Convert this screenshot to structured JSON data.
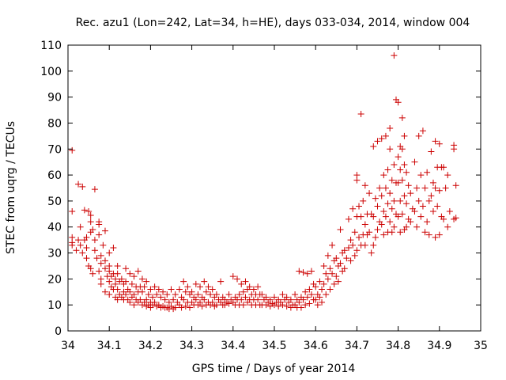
{
  "chart_data": {
    "type": "scatter",
    "title": "Rec. azu1 (Lon=242, Lat=34, h=HE), days 033-034, 2014, window 004",
    "xlabel": "GPS time / Days of year 2014",
    "ylabel": "STEC from uqrg / TECUs",
    "xlim": [
      34,
      35
    ],
    "ylim": [
      0,
      110
    ],
    "x_ticks": [
      34,
      34.1,
      34.2,
      34.3,
      34.4,
      34.5,
      34.6,
      34.7,
      34.8,
      34.9,
      35
    ],
    "x_tick_labels": [
      "34",
      "34.1",
      "34.2",
      "34.3",
      "34.4",
      "34.5",
      "34.6",
      "34.7",
      "34.8",
      "34.9",
      "35"
    ],
    "y_ticks": [
      0,
      10,
      20,
      30,
      40,
      50,
      60,
      70,
      80,
      90,
      100,
      110
    ],
    "y_tick_labels": [
      "0",
      "10",
      "20",
      "30",
      "40",
      "50",
      "60",
      "70",
      "80",
      "90",
      "100",
      "110"
    ],
    "marker": "plus",
    "color": "#cc0000",
    "grid": false,
    "points": [
      [
        34.01,
        69.5
      ],
      [
        34.01,
        46
      ],
      [
        34.01,
        36
      ],
      [
        34.01,
        34
      ],
      [
        34.01,
        33
      ],
      [
        34.025,
        56.5
      ],
      [
        34.03,
        40
      ],
      [
        34.035,
        55.5
      ],
      [
        34.025,
        35
      ],
      [
        34.03,
        33
      ],
      [
        34.035,
        30
      ],
      [
        34.02,
        31
      ],
      [
        34.04,
        46.5
      ],
      [
        34.045,
        36
      ],
      [
        34.045,
        32
      ],
      [
        34.045,
        28
      ],
      [
        34.04,
        35
      ],
      [
        34.05,
        46
      ],
      [
        34.055,
        44.5
      ],
      [
        34.055,
        42
      ],
      [
        34.055,
        38
      ],
      [
        34.05,
        25
      ],
      [
        34.055,
        24
      ],
      [
        34.065,
        54.5
      ],
      [
        34.06,
        39
      ],
      [
        34.065,
        35
      ],
      [
        34.065,
        31
      ],
      [
        34.07,
        28
      ],
      [
        34.06,
        22
      ],
      [
        34.075,
        42
      ],
      [
        34.075,
        41
      ],
      [
        34.075,
        37
      ],
      [
        34.08,
        29
      ],
      [
        34.08,
        26
      ],
      [
        34.075,
        23
      ],
      [
        34.08,
        20
      ],
      [
        34.08,
        18
      ],
      [
        34.085,
        33
      ],
      [
        34.09,
        38.5
      ],
      [
        34.09,
        27
      ],
      [
        34.09,
        24
      ],
      [
        34.095,
        21
      ],
      [
        34.09,
        15
      ],
      [
        34.1,
        30
      ],
      [
        34.1,
        25
      ],
      [
        34.1,
        23
      ],
      [
        34.105,
        21
      ],
      [
        34.1,
        19
      ],
      [
        34.105,
        17
      ],
      [
        34.1,
        14
      ],
      [
        34.11,
        32
      ],
      [
        34.11,
        22
      ],
      [
        34.115,
        20
      ],
      [
        34.115,
        18
      ],
      [
        34.11,
        16
      ],
      [
        34.115,
        13
      ],
      [
        34.12,
        25
      ],
      [
        34.12,
        22
      ],
      [
        34.125,
        19
      ],
      [
        34.12,
        16
      ],
      [
        34.125,
        14
      ],
      [
        34.12,
        12
      ],
      [
        34.13,
        20
      ],
      [
        34.135,
        18
      ],
      [
        34.135,
        15
      ],
      [
        34.13,
        13
      ],
      [
        34.135,
        12
      ],
      [
        34.14,
        24
      ],
      [
        34.14,
        19
      ],
      [
        34.145,
        16
      ],
      [
        34.14,
        14
      ],
      [
        34.145,
        12
      ],
      [
        34.15,
        22
      ],
      [
        34.155,
        18
      ],
      [
        34.15,
        15
      ],
      [
        34.155,
        13
      ],
      [
        34.15,
        11
      ],
      [
        34.16,
        21
      ],
      [
        34.165,
        17
      ],
      [
        34.16,
        14
      ],
      [
        34.165,
        12
      ],
      [
        34.16,
        10
      ],
      [
        34.17,
        23
      ],
      [
        34.175,
        17
      ],
      [
        34.17,
        15
      ],
      [
        34.175,
        12
      ],
      [
        34.17,
        11
      ],
      [
        34.18,
        20
      ],
      [
        34.185,
        17
      ],
      [
        34.18,
        15
      ],
      [
        34.185,
        11
      ],
      [
        34.18,
        10
      ],
      [
        34.19,
        19
      ],
      [
        34.195,
        14
      ],
      [
        34.19,
        12
      ],
      [
        34.195,
        10
      ],
      [
        34.19,
        9.5
      ],
      [
        34.2,
        16
      ],
      [
        34.205,
        13
      ],
      [
        34.2,
        11
      ],
      [
        34.205,
        10
      ],
      [
        34.2,
        9
      ],
      [
        34.21,
        17
      ],
      [
        34.215,
        14
      ],
      [
        34.21,
        11
      ],
      [
        34.215,
        9.5
      ],
      [
        34.22,
        16
      ],
      [
        34.225,
        13
      ],
      [
        34.22,
        10
      ],
      [
        34.225,
        9
      ],
      [
        34.23,
        15
      ],
      [
        34.235,
        12
      ],
      [
        34.23,
        9.5
      ],
      [
        34.235,
        9
      ],
      [
        34.24,
        14
      ],
      [
        34.245,
        11
      ],
      [
        34.24,
        9
      ],
      [
        34.245,
        8.5
      ],
      [
        34.25,
        16
      ],
      [
        34.255,
        12
      ],
      [
        34.25,
        9.5
      ],
      [
        34.255,
        8.5
      ],
      [
        34.26,
        14
      ],
      [
        34.265,
        11
      ],
      [
        34.26,
        9
      ],
      [
        34.27,
        16
      ],
      [
        34.275,
        13
      ],
      [
        34.27,
        10
      ],
      [
        34.275,
        9
      ],
      [
        34.28,
        19
      ],
      [
        34.285,
        15
      ],
      [
        34.28,
        12
      ],
      [
        34.285,
        9.5
      ],
      [
        34.29,
        17
      ],
      [
        34.295,
        14
      ],
      [
        34.29,
        11
      ],
      [
        34.295,
        9
      ],
      [
        34.3,
        15
      ],
      [
        34.305,
        13
      ],
      [
        34.3,
        11
      ],
      [
        34.305,
        10
      ],
      [
        34.31,
        18
      ],
      [
        34.315,
        14
      ],
      [
        34.31,
        12
      ],
      [
        34.315,
        10
      ],
      [
        34.32,
        17
      ],
      [
        34.325,
        13
      ],
      [
        34.32,
        11
      ],
      [
        34.325,
        9.5
      ],
      [
        34.33,
        19
      ],
      [
        34.335,
        15
      ],
      [
        34.33,
        12
      ],
      [
        34.335,
        10
      ],
      [
        34.34,
        17
      ],
      [
        34.345,
        14
      ],
      [
        34.34,
        11
      ],
      [
        34.345,
        10
      ],
      [
        34.35,
        16
      ],
      [
        34.355,
        13
      ],
      [
        34.35,
        11
      ],
      [
        34.355,
        9.5
      ],
      [
        34.36,
        14
      ],
      [
        34.365,
        12
      ],
      [
        34.36,
        10
      ],
      [
        34.37,
        19
      ],
      [
        34.375,
        13
      ],
      [
        34.37,
        11
      ],
      [
        34.375,
        10
      ],
      [
        34.38,
        12
      ],
      [
        34.385,
        11
      ],
      [
        34.38,
        10
      ],
      [
        34.39,
        14
      ],
      [
        34.395,
        12
      ],
      [
        34.39,
        10.5
      ],
      [
        34.4,
        21
      ],
      [
        34.405,
        13
      ],
      [
        34.4,
        11
      ],
      [
        34.405,
        10
      ],
      [
        34.41,
        20
      ],
      [
        34.415,
        14
      ],
      [
        34.41,
        12
      ],
      [
        34.415,
        10
      ],
      [
        34.42,
        18
      ],
      [
        34.425,
        15
      ],
      [
        34.42,
        12
      ],
      [
        34.425,
        10
      ],
      [
        34.43,
        19
      ],
      [
        34.435,
        16
      ],
      [
        34.43,
        13
      ],
      [
        34.435,
        11
      ],
      [
        34.44,
        17
      ],
      [
        34.445,
        14
      ],
      [
        34.44,
        12
      ],
      [
        34.445,
        10
      ],
      [
        34.45,
        16
      ],
      [
        34.455,
        14
      ],
      [
        34.45,
        12
      ],
      [
        34.455,
        10
      ],
      [
        34.46,
        17
      ],
      [
        34.465,
        14
      ],
      [
        34.46,
        12
      ],
      [
        34.465,
        10
      ],
      [
        34.47,
        14
      ],
      [
        34.475,
        12
      ],
      [
        34.47,
        10
      ],
      [
        34.48,
        13
      ],
      [
        34.485,
        11
      ],
      [
        34.48,
        10
      ],
      [
        34.49,
        12
      ],
      [
        34.495,
        10.5
      ],
      [
        34.49,
        9.5
      ],
      [
        34.5,
        13
      ],
      [
        34.505,
        11
      ],
      [
        34.5,
        10
      ],
      [
        34.51,
        12
      ],
      [
        34.515,
        11
      ],
      [
        34.51,
        9.5
      ],
      [
        34.52,
        14
      ],
      [
        34.525,
        12
      ],
      [
        34.52,
        10
      ],
      [
        34.53,
        13
      ],
      [
        34.535,
        11
      ],
      [
        34.53,
        9.5
      ],
      [
        34.54,
        12
      ],
      [
        34.545,
        10
      ],
      [
        34.54,
        9
      ],
      [
        34.55,
        14
      ],
      [
        34.555,
        12
      ],
      [
        34.55,
        10
      ],
      [
        34.555,
        9
      ],
      [
        34.56,
        23
      ],
      [
        34.565,
        13
      ],
      [
        34.56,
        11
      ],
      [
        34.565,
        9
      ],
      [
        34.57,
        22.5
      ],
      [
        34.575,
        15
      ],
      [
        34.57,
        12
      ],
      [
        34.575,
        10
      ],
      [
        34.58,
        22
      ],
      [
        34.585,
        16
      ],
      [
        34.58,
        13
      ],
      [
        34.585,
        10.5
      ],
      [
        34.59,
        23
      ],
      [
        34.595,
        18
      ],
      [
        34.59,
        14
      ],
      [
        34.595,
        12
      ],
      [
        34.6,
        17
      ],
      [
        34.605,
        14
      ],
      [
        34.6,
        12
      ],
      [
        34.605,
        10
      ],
      [
        34.61,
        19
      ],
      [
        34.615,
        16
      ],
      [
        34.61,
        13
      ],
      [
        34.615,
        11
      ],
      [
        34.62,
        25
      ],
      [
        34.625,
        22
      ],
      [
        34.62,
        18
      ],
      [
        34.625,
        14
      ],
      [
        34.63,
        29
      ],
      [
        34.635,
        24
      ],
      [
        34.63,
        20
      ],
      [
        34.635,
        16
      ],
      [
        34.64,
        33
      ],
      [
        34.645,
        27
      ],
      [
        34.64,
        22
      ],
      [
        34.645,
        18
      ],
      [
        34.65,
        28
      ],
      [
        34.655,
        25
      ],
      [
        34.65,
        21
      ],
      [
        34.655,
        19
      ],
      [
        34.66,
        39
      ],
      [
        34.665,
        30
      ],
      [
        34.66,
        26
      ],
      [
        34.665,
        23
      ],
      [
        34.67,
        31
      ],
      [
        34.675,
        28
      ],
      [
        34.67,
        24
      ],
      [
        34.68,
        43
      ],
      [
        34.685,
        35
      ],
      [
        34.68,
        32
      ],
      [
        34.685,
        27
      ],
      [
        34.69,
        47
      ],
      [
        34.695,
        38
      ],
      [
        34.69,
        33
      ],
      [
        34.695,
        29
      ],
      [
        34.7,
        60
      ],
      [
        34.7,
        58
      ],
      [
        34.705,
        48
      ],
      [
        34.7,
        44
      ],
      [
        34.705,
        36
      ],
      [
        34.7,
        31
      ],
      [
        34.71,
        83.5
      ],
      [
        34.715,
        50
      ],
      [
        34.71,
        44
      ],
      [
        34.715,
        37
      ],
      [
        34.71,
        33
      ],
      [
        34.72,
        56
      ],
      [
        34.725,
        45
      ],
      [
        34.72,
        41
      ],
      [
        34.725,
        37
      ],
      [
        34.72,
        33
      ],
      [
        34.73,
        53
      ],
      [
        34.735,
        45
      ],
      [
        34.73,
        38
      ],
      [
        34.735,
        30
      ],
      [
        34.74,
        71
      ],
      [
        34.745,
        51
      ],
      [
        34.74,
        44
      ],
      [
        34.745,
        36
      ],
      [
        34.74,
        33
      ],
      [
        34.75,
        73
      ],
      [
        34.755,
        55
      ],
      [
        34.75,
        48
      ],
      [
        34.755,
        42
      ],
      [
        34.75,
        39
      ],
      [
        34.76,
        74
      ],
      [
        34.765,
        60
      ],
      [
        34.76,
        52
      ],
      [
        34.765,
        46
      ],
      [
        34.76,
        41
      ],
      [
        34.765,
        37
      ],
      [
        34.77,
        75
      ],
      [
        34.775,
        62
      ],
      [
        34.77,
        55
      ],
      [
        34.775,
        49
      ],
      [
        34.77,
        44
      ],
      [
        34.775,
        38
      ],
      [
        34.78,
        78
      ],
      [
        34.78,
        70
      ],
      [
        34.785,
        58
      ],
      [
        34.78,
        53
      ],
      [
        34.785,
        47
      ],
      [
        34.78,
        42
      ],
      [
        34.785,
        38
      ],
      [
        34.79,
        106
      ],
      [
        34.795,
        89
      ],
      [
        34.79,
        64
      ],
      [
        34.795,
        57
      ],
      [
        34.79,
        50
      ],
      [
        34.795,
        45
      ],
      [
        34.79,
        40
      ],
      [
        34.8,
        88
      ],
      [
        34.805,
        71
      ],
      [
        34.8,
        67
      ],
      [
        34.805,
        62
      ],
      [
        34.8,
        57
      ],
      [
        34.805,
        50
      ],
      [
        34.8,
        44
      ],
      [
        34.805,
        38
      ],
      [
        34.81,
        82
      ],
      [
        34.815,
        75
      ],
      [
        34.81,
        70
      ],
      [
        34.815,
        64
      ],
      [
        34.81,
        58
      ],
      [
        34.815,
        52
      ],
      [
        34.81,
        45
      ],
      [
        34.815,
        39
      ],
      [
        34.82,
        61
      ],
      [
        34.825,
        56
      ],
      [
        34.82,
        49
      ],
      [
        34.825,
        43
      ],
      [
        34.82,
        40
      ],
      [
        34.83,
        53
      ],
      [
        34.835,
        47
      ],
      [
        34.83,
        42
      ],
      [
        34.84,
        65
      ],
      [
        34.845,
        55
      ],
      [
        34.84,
        46
      ],
      [
        34.845,
        40
      ],
      [
        34.85,
        75
      ],
      [
        34.855,
        60
      ],
      [
        34.85,
        50
      ],
      [
        34.855,
        44
      ],
      [
        34.86,
        77
      ],
      [
        34.865,
        55
      ],
      [
        34.86,
        48
      ],
      [
        34.865,
        38
      ],
      [
        34.87,
        61
      ],
      [
        34.875,
        50
      ],
      [
        34.87,
        42
      ],
      [
        34.875,
        37
      ],
      [
        34.88,
        69
      ],
      [
        34.885,
        57
      ],
      [
        34.88,
        52
      ],
      [
        34.885,
        46
      ],
      [
        34.89,
        73
      ],
      [
        34.895,
        63
      ],
      [
        34.89,
        55
      ],
      [
        34.895,
        48
      ],
      [
        34.89,
        36
      ],
      [
        34.9,
        72
      ],
      [
        34.905,
        63
      ],
      [
        34.9,
        54
      ],
      [
        34.905,
        44
      ],
      [
        34.9,
        37
      ],
      [
        34.91,
        63
      ],
      [
        34.915,
        55
      ],
      [
        34.91,
        43
      ],
      [
        34.92,
        60
      ],
      [
        34.925,
        46
      ],
      [
        34.92,
        40
      ],
      [
        34.935,
        71.5
      ],
      [
        34.935,
        70
      ],
      [
        34.94,
        56
      ],
      [
        34.94,
        43.5
      ],
      [
        34.935,
        43
      ]
    ]
  }
}
